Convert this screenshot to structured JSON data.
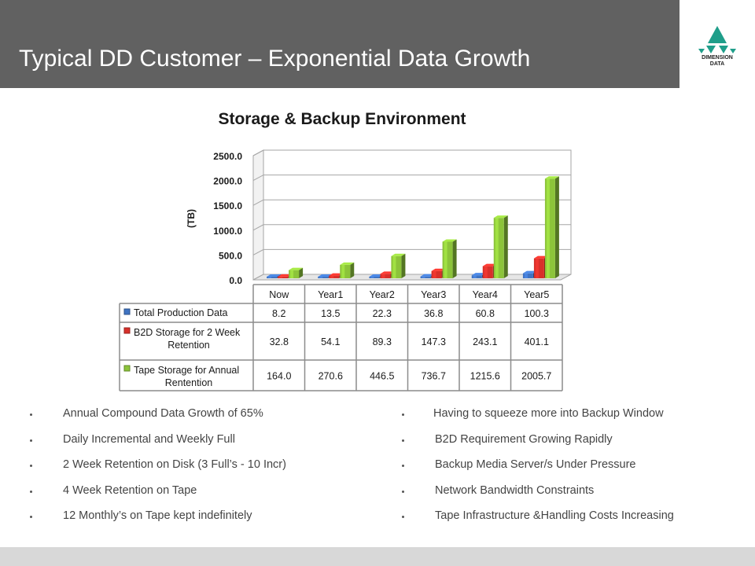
{
  "header": {
    "title": "Typical DD Customer – Exponential Data Growth",
    "logo_line1": "DIMENSION",
    "logo_line2": "DATA"
  },
  "colors": {
    "header_bg": "#616161",
    "series_blue": "#3f73c2",
    "series_red": "#d8302a",
    "series_green": "#8cc43a"
  },
  "chart_data": {
    "type": "bar",
    "title": "Storage & Backup Environment",
    "ylabel": "(TB)",
    "xlabel": "",
    "ylim": [
      0,
      2500
    ],
    "yticks": [
      "0.0",
      "500.0",
      "1000.0",
      "1500.0",
      "2000.0",
      "2500.0"
    ],
    "grid": true,
    "style": "3d-clustered",
    "categories": [
      "Now",
      "Year1",
      "Year2",
      "Year3",
      "Year4",
      "Year5"
    ],
    "series": [
      {
        "name": "Total Production Data",
        "values": [
          8.2,
          13.5,
          22.3,
          36.8,
          60.8,
          100.3
        ],
        "labels": [
          "8.2",
          "13.5",
          "22.3",
          "36.8",
          "60.8",
          "100.3"
        ]
      },
      {
        "name": "B2D Storage for 2 Week Retention",
        "values": [
          32.8,
          54.1,
          89.3,
          147.3,
          243.1,
          401.1
        ],
        "labels": [
          "32.8",
          "54.1",
          "89.3",
          "147.3",
          "243.1",
          "401.1"
        ]
      },
      {
        "name": "Tape Storage for Annual Rentention",
        "values": [
          164.0,
          270.6,
          446.5,
          736.7,
          1215.6,
          2005.7
        ],
        "labels": [
          "164.0",
          "270.6",
          "446.5",
          "736.7",
          "1215.6",
          "2005.7"
        ]
      }
    ],
    "data_table": true
  },
  "bullets_left": [
    "Annual Compound Data Growth of 65%",
    "Daily Incremental and Weekly Full",
    "2 Week Retention on Disk (3 Full’s - 10 Incr)",
    "4 Week Retention on Tape",
    "12 Monthly’s on Tape kept indefinitely"
  ],
  "bullets_right": [
    "Having to squeeze more into Backup Window",
    "B2D Requirement Growing Rapidly",
    "Backup Media Server/s Under Pressure",
    "Network Bandwidth Constraints",
    "Tape Infrastructure &Handling Costs Increasing"
  ]
}
